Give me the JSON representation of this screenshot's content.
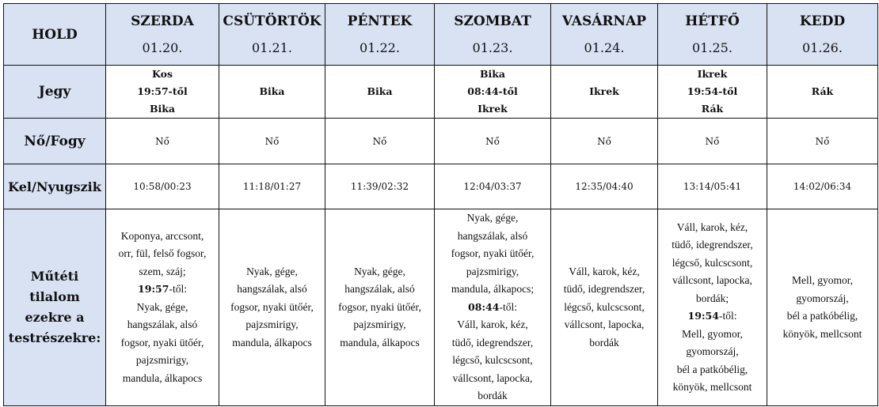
{
  "header": {
    "corner": "HOLD",
    "days": [
      {
        "name": "SZERDA",
        "date": "01.20."
      },
      {
        "name": "CSÜTÖRTÖK",
        "date": "01.21."
      },
      {
        "name": "PÉNTEK",
        "date": "01.22."
      },
      {
        "name": "SZOMBAT",
        "date": "01.23."
      },
      {
        "name": "VASÁRNAP",
        "date": "01.24."
      },
      {
        "name": "HÉTFŐ",
        "date": "01.25."
      },
      {
        "name": "KEDD",
        "date": "01.26."
      }
    ]
  },
  "rows": {
    "sign": {
      "label": "Jegy",
      "values": [
        [
          "Kos",
          "19:57-től",
          "Bika"
        ],
        [
          "Bika"
        ],
        [
          "Bika"
        ],
        [
          "Bika",
          "08:44-től",
          "Ikrek"
        ],
        [
          "Ikrek"
        ],
        [
          "Ikrek",
          "19:54-től",
          "Rák"
        ],
        [
          "Rák"
        ]
      ]
    },
    "phase": {
      "label": "Nő/Fogy",
      "values": [
        "Nő",
        "Nő",
        "Nő",
        "Nő",
        "Nő",
        "Nő",
        "Nő"
      ]
    },
    "riseset": {
      "label": "Kel/Nyugszik",
      "values": [
        "10:58/00:23",
        "11:18/01:27",
        "11:39/02:32",
        "12:04/03:37",
        "12:35/04:40",
        "13:14/05:41",
        "14:02/06:34"
      ]
    },
    "restriction": {
      "label": [
        "Műtéti tilalom",
        "ezekre a",
        "testrészekre:"
      ],
      "values": [
        [
          "Koponya, arccsont,",
          "orr, fül, felső fogsor,",
          "szem, száj;",
          {
            "bold": "19:57",
            "text": "-től:"
          },
          "Nyak, gége,",
          "hangszálak, alsó",
          "fogsor, nyaki ütőér,",
          "pajzsmirigy,",
          "mandula, álkapocs"
        ],
        [
          "Nyak, gége,",
          "hangszálak, alsó",
          "fogsor, nyaki ütőér,",
          "pajzsmirigy,",
          "mandula, álkapocs"
        ],
        [
          "Nyak, gége,",
          "hangszálak, alsó",
          "fogsor, nyaki ütőér,",
          "pajzsmirigy,",
          "mandula, álkapocs"
        ],
        [
          "Nyak, gége,",
          "hangszálak, alsó",
          "fogsor, nyaki ütőér,",
          "pajzsmirigy,",
          "mandula, álkapocs;",
          {
            "bold": "08:44",
            "text": "-től:"
          },
          "Váll, karok, kéz,",
          "tüdő, idegrendszer,",
          "légcső, kulcscsont,",
          "vállcsont, lapocka,",
          "bordák"
        ],
        [
          "Váll, karok, kéz,",
          "tüdő, idegrendszer,",
          "légcső, kulcscsont,",
          "vállcsont, lapocka,",
          "bordák"
        ],
        [
          "Váll, karok, kéz,",
          "tüdő, idegrendszer,",
          "légcső, kulcscsont,",
          "vállcsont, lapocka,",
          "bordák;",
          {
            "bold": "19:54",
            "text": "-től:"
          },
          "Mell, gyomor,",
          "gyomorszáj,",
          "bél a patkóbélig,",
          "könyök, mellcsont"
        ],
        [
          "Mell, gyomor,",
          "gyomorszáj,",
          "bél a patkóbélig,",
          "könyök, mellcsont"
        ]
      ]
    }
  },
  "colors": {
    "header_bg": "#d9e2f3",
    "border": "#111111"
  }
}
